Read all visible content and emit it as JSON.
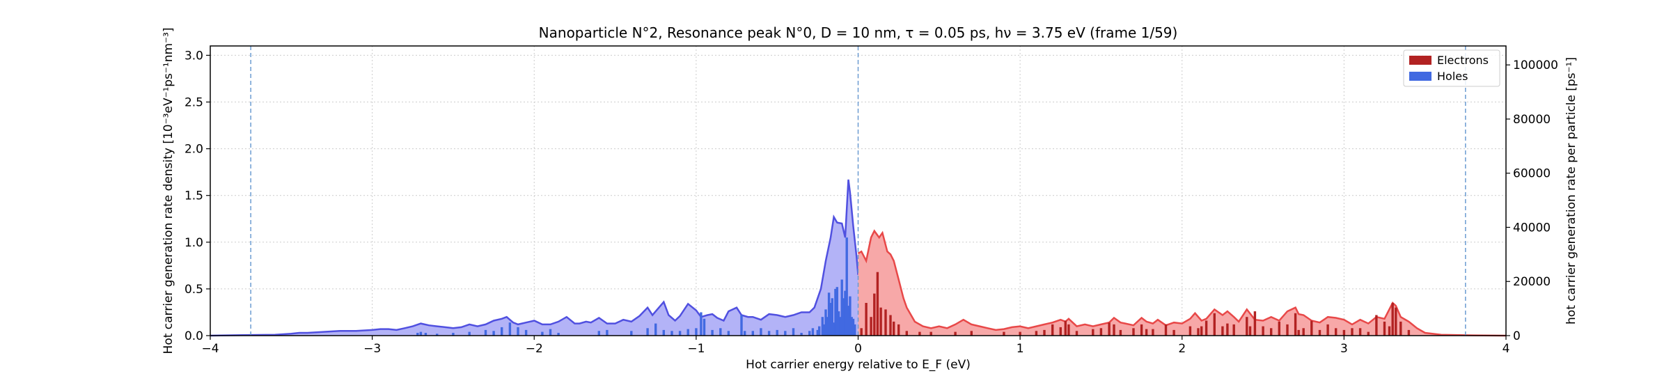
{
  "chart_data": {
    "type": "area",
    "title": "Nanoparticle N°2, Resonance peak N°0, D = 10 nm, τ = 0.05 ps, hν = 3.75 eV   (frame 1/59)",
    "xlabel": "Hot carrier energy relative to E_F (eV)",
    "ylabel": "Hot carrier generation rate density [10⁻³eV⁻¹ps⁻¹nm⁻³]",
    "ylabel_right": "hot carrier generation rate per particle [ps⁻¹]",
    "xlim": [
      -4,
      4
    ],
    "ylim": [
      0,
      3.1
    ],
    "ylim_right": [
      0,
      107000
    ],
    "x_ticks": [
      -4,
      -3,
      -2,
      -1,
      0,
      1,
      2,
      3,
      4
    ],
    "x_tick_labels": [
      "−4",
      "−3",
      "−2",
      "−1",
      "0",
      "1",
      "2",
      "3",
      "4"
    ],
    "y_ticks": [
      0.0,
      0.5,
      1.0,
      1.5,
      2.0,
      2.5,
      3.0
    ],
    "y_tick_labels": [
      "0.0",
      "0.5",
      "1.0",
      "1.5",
      "2.0",
      "2.5",
      "3.0"
    ],
    "y_right_ticks": [
      0,
      20000,
      40000,
      60000,
      80000,
      100000
    ],
    "y_right_tick_labels": [
      "0",
      "20000",
      "40000",
      "60000",
      "80000",
      "100000"
    ],
    "grid": true,
    "legend_position": "top-right",
    "vlines": [
      -3.75,
      0,
      3.75
    ],
    "colors": {
      "holes_fill": "#b3b3f7",
      "holes_line": "#5050e0",
      "holes_bar": "#4169e1",
      "electrons_fill": "#f7a8a8",
      "electrons_line": "#e84848",
      "electrons_bar": "#b22222",
      "vline": "#6b9bd1"
    },
    "series": [
      {
        "name": "Holes",
        "kind": "density",
        "x": [
          -4.0,
          -3.8,
          -3.6,
          -3.5,
          -3.45,
          -3.4,
          -3.3,
          -3.2,
          -3.1,
          -3.0,
          -2.95,
          -2.9,
          -2.85,
          -2.8,
          -2.75,
          -2.7,
          -2.65,
          -2.6,
          -2.55,
          -2.5,
          -2.45,
          -2.4,
          -2.35,
          -2.3,
          -2.25,
          -2.2,
          -2.17,
          -2.13,
          -2.1,
          -2.05,
          -2.0,
          -1.95,
          -1.9,
          -1.85,
          -1.8,
          -1.75,
          -1.72,
          -1.68,
          -1.65,
          -1.6,
          -1.55,
          -1.5,
          -1.45,
          -1.4,
          -1.35,
          -1.3,
          -1.27,
          -1.23,
          -1.2,
          -1.17,
          -1.13,
          -1.1,
          -1.05,
          -1.0,
          -0.97,
          -0.93,
          -0.9,
          -0.87,
          -0.83,
          -0.8,
          -0.75,
          -0.72,
          -0.68,
          -0.65,
          -0.6,
          -0.55,
          -0.5,
          -0.45,
          -0.4,
          -0.35,
          -0.3,
          -0.27,
          -0.23,
          -0.2,
          -0.17,
          -0.15,
          -0.13,
          -0.1,
          -0.08,
          -0.06,
          -0.05,
          -0.03,
          -0.01,
          0.0
        ],
        "values": [
          0.0,
          0.005,
          0.01,
          0.02,
          0.03,
          0.03,
          0.04,
          0.05,
          0.05,
          0.06,
          0.07,
          0.07,
          0.06,
          0.08,
          0.1,
          0.13,
          0.11,
          0.1,
          0.09,
          0.08,
          0.09,
          0.12,
          0.1,
          0.12,
          0.16,
          0.18,
          0.2,
          0.14,
          0.12,
          0.14,
          0.16,
          0.12,
          0.12,
          0.15,
          0.2,
          0.13,
          0.13,
          0.15,
          0.14,
          0.19,
          0.13,
          0.13,
          0.17,
          0.15,
          0.21,
          0.3,
          0.22,
          0.3,
          0.36,
          0.22,
          0.16,
          0.21,
          0.34,
          0.27,
          0.2,
          0.22,
          0.23,
          0.19,
          0.16,
          0.26,
          0.3,
          0.22,
          0.2,
          0.2,
          0.17,
          0.23,
          0.22,
          0.2,
          0.22,
          0.25,
          0.25,
          0.3,
          0.5,
          0.8,
          1.05,
          1.27,
          1.21,
          1.2,
          1.05,
          1.67,
          1.53,
          1.17,
          0.85,
          0.65
        ]
      },
      {
        "name": "Electrons",
        "kind": "density",
        "x": [
          0.0,
          0.02,
          0.05,
          0.08,
          0.1,
          0.13,
          0.15,
          0.18,
          0.2,
          0.22,
          0.25,
          0.28,
          0.3,
          0.35,
          0.4,
          0.45,
          0.5,
          0.55,
          0.6,
          0.65,
          0.7,
          0.75,
          0.8,
          0.85,
          0.9,
          0.95,
          1.0,
          1.05,
          1.1,
          1.15,
          1.2,
          1.25,
          1.28,
          1.3,
          1.35,
          1.4,
          1.45,
          1.5,
          1.55,
          1.58,
          1.62,
          1.65,
          1.7,
          1.75,
          1.78,
          1.82,
          1.85,
          1.9,
          1.95,
          2.0,
          2.05,
          2.08,
          2.12,
          2.15,
          2.2,
          2.25,
          2.28,
          2.32,
          2.35,
          2.4,
          2.45,
          2.5,
          2.55,
          2.6,
          2.65,
          2.7,
          2.72,
          2.75,
          2.8,
          2.85,
          2.9,
          2.95,
          3.0,
          3.05,
          3.1,
          3.15,
          3.2,
          3.25,
          3.3,
          3.32,
          3.35,
          3.4,
          3.45,
          3.5,
          3.6,
          3.8,
          4.0
        ],
        "values": [
          0.88,
          0.9,
          0.8,
          1.05,
          1.12,
          1.05,
          1.1,
          0.9,
          0.87,
          0.8,
          0.6,
          0.4,
          0.3,
          0.15,
          0.1,
          0.08,
          0.1,
          0.08,
          0.12,
          0.17,
          0.12,
          0.1,
          0.08,
          0.06,
          0.07,
          0.09,
          0.1,
          0.08,
          0.1,
          0.12,
          0.14,
          0.17,
          0.15,
          0.18,
          0.1,
          0.12,
          0.1,
          0.12,
          0.14,
          0.19,
          0.14,
          0.13,
          0.11,
          0.19,
          0.15,
          0.13,
          0.17,
          0.11,
          0.14,
          0.13,
          0.18,
          0.24,
          0.16,
          0.18,
          0.28,
          0.22,
          0.26,
          0.2,
          0.15,
          0.28,
          0.17,
          0.16,
          0.2,
          0.16,
          0.26,
          0.3,
          0.23,
          0.22,
          0.16,
          0.14,
          0.2,
          0.19,
          0.17,
          0.12,
          0.17,
          0.13,
          0.2,
          0.18,
          0.35,
          0.32,
          0.2,
          0.15,
          0.08,
          0.03,
          0.01,
          0.003,
          0.0
        ]
      },
      {
        "name": "Holes",
        "kind": "bars",
        "x": [
          -2.72,
          -2.7,
          -2.67,
          -2.6,
          -2.5,
          -2.4,
          -2.3,
          -2.25,
          -2.2,
          -2.15,
          -2.1,
          -2.05,
          -1.95,
          -1.9,
          -1.85,
          -1.6,
          -1.55,
          -1.4,
          -1.3,
          -1.25,
          -1.2,
          -1.15,
          -1.1,
          -1.05,
          -1.0,
          -0.97,
          -0.95,
          -0.9,
          -0.85,
          -0.8,
          -0.72,
          -0.7,
          -0.65,
          -0.6,
          -0.55,
          -0.5,
          -0.45,
          -0.4,
          -0.35,
          -0.3,
          -0.28,
          -0.25,
          -0.24,
          -0.22,
          -0.21,
          -0.2,
          -0.19,
          -0.18,
          -0.17,
          -0.16,
          -0.15,
          -0.14,
          -0.13,
          -0.12,
          -0.11,
          -0.1,
          -0.09,
          -0.08,
          -0.07,
          -0.06,
          -0.05,
          -0.04,
          -0.03,
          -0.02
        ],
        "values": [
          0.03,
          0.04,
          0.03,
          0.02,
          0.03,
          0.04,
          0.06,
          0.05,
          0.09,
          0.14,
          0.09,
          0.06,
          0.04,
          0.07,
          0.03,
          0.05,
          0.06,
          0.05,
          0.08,
          0.13,
          0.06,
          0.05,
          0.05,
          0.07,
          0.08,
          0.25,
          0.18,
          0.06,
          0.08,
          0.05,
          0.22,
          0.05,
          0.05,
          0.08,
          0.05,
          0.06,
          0.05,
          0.08,
          0.03,
          0.05,
          0.08,
          0.06,
          0.1,
          0.2,
          0.12,
          0.28,
          0.2,
          0.46,
          0.35,
          0.4,
          0.14,
          0.5,
          0.52,
          0.26,
          0.2,
          0.6,
          0.4,
          0.48,
          1.05,
          0.32,
          0.42,
          0.2,
          0.18,
          0.12
        ]
      },
      {
        "name": "Electrons",
        "kind": "bars",
        "x": [
          0.02,
          0.05,
          0.08,
          0.1,
          0.12,
          0.14,
          0.17,
          0.2,
          0.22,
          0.25,
          0.3,
          0.38,
          0.45,
          0.6,
          0.7,
          0.9,
          1.0,
          1.1,
          1.15,
          1.2,
          1.25,
          1.28,
          1.3,
          1.35,
          1.45,
          1.5,
          1.55,
          1.58,
          1.62,
          1.7,
          1.75,
          1.78,
          1.82,
          1.9,
          1.95,
          2.05,
          2.1,
          2.12,
          2.15,
          2.2,
          2.25,
          2.28,
          2.32,
          2.4,
          2.42,
          2.45,
          2.5,
          2.55,
          2.6,
          2.65,
          2.7,
          2.72,
          2.75,
          2.8,
          2.85,
          2.9,
          2.95,
          3.0,
          3.05,
          3.1,
          3.15,
          3.2,
          3.25,
          3.28,
          3.3,
          3.32,
          3.35,
          3.4
        ],
        "values": [
          0.08,
          0.35,
          0.2,
          0.45,
          0.68,
          0.3,
          0.28,
          0.22,
          0.15,
          0.12,
          0.05,
          0.04,
          0.04,
          0.04,
          0.05,
          0.04,
          0.04,
          0.05,
          0.06,
          0.12,
          0.09,
          0.16,
          0.12,
          0.05,
          0.07,
          0.08,
          0.14,
          0.12,
          0.06,
          0.08,
          0.12,
          0.07,
          0.07,
          0.12,
          0.06,
          0.1,
          0.08,
          0.1,
          0.16,
          0.24,
          0.1,
          0.13,
          0.12,
          0.2,
          0.1,
          0.26,
          0.1,
          0.08,
          0.15,
          0.12,
          0.24,
          0.06,
          0.08,
          0.16,
          0.06,
          0.12,
          0.08,
          0.06,
          0.08,
          0.08,
          0.04,
          0.22,
          0.15,
          0.1,
          0.35,
          0.3,
          0.15,
          0.06
        ]
      }
    ]
  }
}
